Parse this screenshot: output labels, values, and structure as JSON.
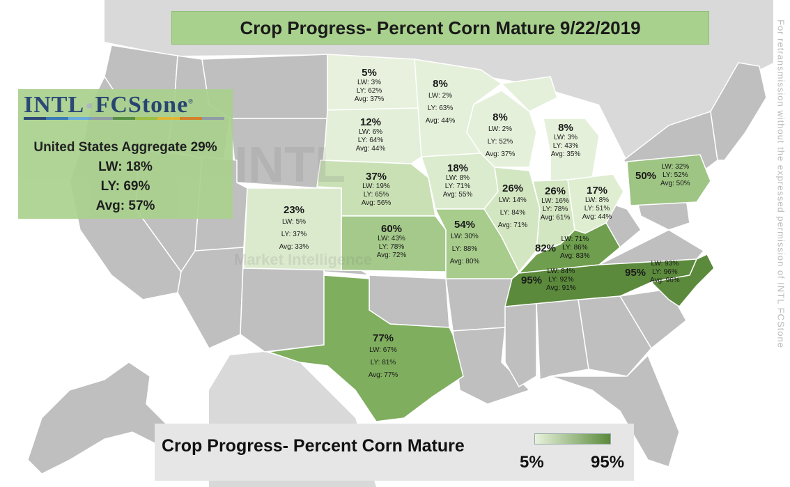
{
  "title": "Crop Progress- Percent Corn Mature 9/22/2019",
  "logo": {
    "left": "INTL",
    "right": "FCStone",
    "registered": "®"
  },
  "aggregate": {
    "headline": "United States Aggregate 29%",
    "lw": "LW: 18%",
    "ly": "LY: 69%",
    "avg": "Avg: 57%"
  },
  "legend": {
    "title": "Crop Progress- Percent Corn Mature",
    "low": "5%",
    "high": "95%",
    "low_color": "#e8f2dc",
    "high_color": "#5b8a3c"
  },
  "permission_note": "For retransmission without the expressed permission of INTL FCStone",
  "watermark": {
    "word": "INTL",
    "sub": "Market Intelligence"
  },
  "colors": {
    "title_bar": "#a9d18e",
    "no_data_state": "#bfbfbf",
    "state_border": "#ffffff",
    "legend_panel": "#e6e6e6"
  },
  "states": [
    {
      "id": "ND",
      "pct": "5%",
      "lw": "LW: 3%",
      "ly": "LY: 62%",
      "avg": "Avg: 37%",
      "value": 5
    },
    {
      "id": "SD",
      "pct": "12%",
      "lw": "LW: 6%",
      "ly": "LY: 64%",
      "avg": "Avg: 44%",
      "value": 12
    },
    {
      "id": "NE",
      "pct": "37%",
      "lw": "LW: 19%",
      "ly": "LY: 65%",
      "avg": "Avg: 56%",
      "value": 37
    },
    {
      "id": "KS",
      "pct": "60%",
      "lw": "LW: 43%",
      "ly": "LY: 78%",
      "avg": "Avg: 72%",
      "value": 60
    },
    {
      "id": "CO",
      "pct": "23%",
      "lw": "LW: 5%",
      "ly": "LY: 37%",
      "avg": "Avg: 33%",
      "value": 23
    },
    {
      "id": "TX",
      "pct": "77%",
      "lw": "LW: 67%",
      "ly": "LY: 81%",
      "avg": "Avg: 77%",
      "value": 77
    },
    {
      "id": "MN",
      "pct": "8%",
      "lw": "LW: 2%",
      "ly": "LY: 63%",
      "avg": "Avg: 44%",
      "value": 8
    },
    {
      "id": "IA",
      "pct": "18%",
      "lw": "LW: 8%",
      "ly": "LY: 71%",
      "avg": "Avg: 55%",
      "value": 18
    },
    {
      "id": "MO",
      "pct": "54%",
      "lw": "LW: 30%",
      "ly": "LY: 88%",
      "avg": "Avg: 80%",
      "value": 54
    },
    {
      "id": "WI",
      "pct": "8%",
      "lw": "LW: 2%",
      "ly": "LY: 52%",
      "avg": "Avg: 37%",
      "value": 8
    },
    {
      "id": "IL",
      "pct": "26%",
      "lw": "LW: 14%",
      "ly": "LY: 84%",
      "avg": "Avg: 71%",
      "value": 26
    },
    {
      "id": "MI",
      "pct": "8%",
      "lw": "LW: 3%",
      "ly": "LY: 43%",
      "avg": "Avg: 35%",
      "value": 8
    },
    {
      "id": "IN",
      "pct": "26%",
      "lw": "LW: 16%",
      "ly": "LY: 78%",
      "avg": "Avg: 61%",
      "value": 26
    },
    {
      "id": "OH",
      "pct": "17%",
      "lw": "LW: 8%",
      "ly": "LY: 51%",
      "avg": "Avg: 44%",
      "value": 17
    },
    {
      "id": "KY",
      "pct": "82%",
      "lw": "LW: 71%",
      "ly": "LY: 86%",
      "avg": "Avg: 83%",
      "value": 82
    },
    {
      "id": "TN",
      "pct": "95%",
      "lw": "LW: 84%",
      "ly": "LY: 92%",
      "avg": "Avg: 91%",
      "value": 95
    },
    {
      "id": "NC",
      "pct": "95%",
      "lw": "LW: 93%",
      "ly": "LY: 96%",
      "avg": "Avg: 96%",
      "value": 95
    },
    {
      "id": "PA",
      "pct": "50%",
      "lw": "LW: 32%",
      "ly": "LY: 52%",
      "avg": "Avg: 50%",
      "value": 50
    }
  ]
}
